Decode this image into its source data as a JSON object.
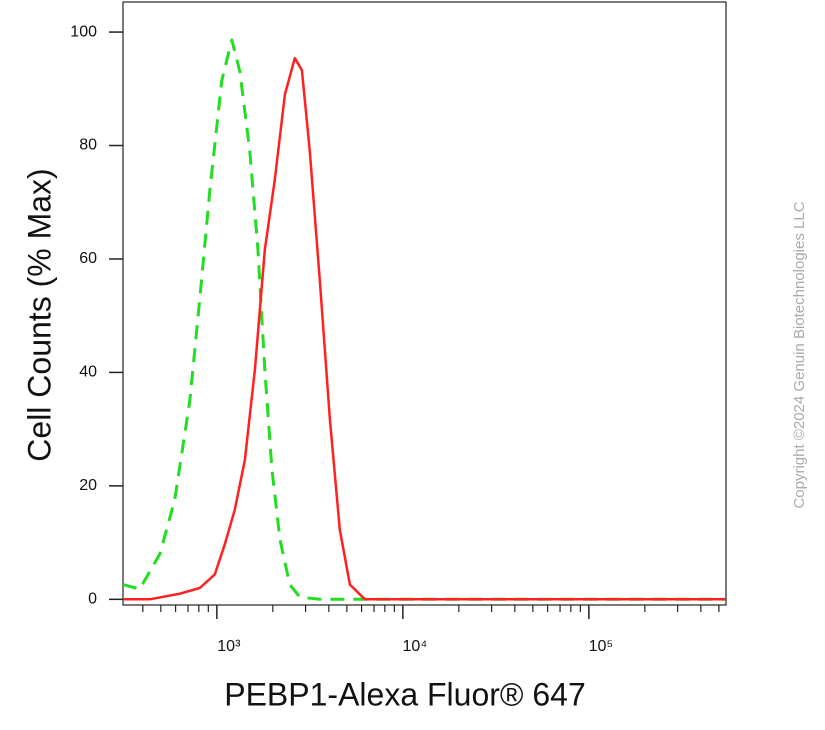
{
  "chart_data": {
    "type": "line",
    "x_label": "PEBP1-Alexa Fluor® 647",
    "y_label": "Cell Counts (% Max)",
    "copyright": "Copyright ©2024 Genuin Biotechnologies LLC",
    "xscale": "log",
    "xlim": [
      313,
      546000
    ],
    "ylim": [
      -1,
      105.3
    ],
    "xticks": [
      {
        "value": 1000,
        "label": "10³"
      },
      {
        "value": 10000,
        "label": "10⁴"
      },
      {
        "value": 100000,
        "label": "10⁵"
      }
    ],
    "xminorticks": [
      400,
      500,
      600,
      700,
      800,
      900,
      2000,
      3000,
      4000,
      5000,
      6000,
      7000,
      8000,
      9000,
      20000,
      30000,
      40000,
      50000,
      60000,
      70000,
      80000,
      90000,
      200000,
      300000,
      400000,
      500000
    ],
    "yticks": [
      0,
      20,
      40,
      60,
      80,
      100
    ],
    "series": [
      {
        "color": "#22dd22",
        "dash": true,
        "x": [
          313,
          385,
          494,
          594,
          716,
          810,
          917,
          1064,
          1204,
          1331,
          1504,
          1661,
          1810,
          1976,
          2183,
          2468,
          2793,
          3580,
          9640,
          540000
        ],
        "values": [
          2.6,
          1.8,
          8,
          17.6,
          35,
          53,
          72,
          91.5,
          98.6,
          93,
          79,
          62,
          40.5,
          23,
          10.6,
          2.6,
          0.4,
          0,
          0,
          0
        ]
      },
      {
        "color": "#ff2020",
        "dash": false,
        "x": [
          313,
          436,
          632,
          810,
          975,
          1104,
          1249,
          1415,
          1601,
          1810,
          2050,
          2321,
          2626,
          2865,
          3162,
          3580,
          4053,
          4584,
          5190,
          6250,
          540000
        ],
        "values": [
          0,
          0,
          1,
          2,
          4.4,
          9.7,
          15.8,
          24.6,
          40.5,
          61.6,
          74,
          89,
          95.4,
          93.3,
          79,
          56,
          31.7,
          12.3,
          2.6,
          0,
          0
        ]
      }
    ]
  }
}
